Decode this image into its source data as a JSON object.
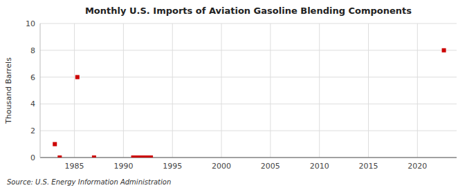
{
  "chart_data": {
    "type": "scatter",
    "title": "Monthly U.S. Imports of Aviation Gasoline Blending Components",
    "y_label": "Thousand Barrels",
    "source": "Source: U.S. Energy Information Administration",
    "x": [
      1983.0,
      1983.5,
      1985.3,
      1987.0,
      1991.0,
      1991.2,
      1991.4,
      1991.6,
      1991.8,
      1992.0,
      1992.2,
      1992.4,
      1992.6,
      1992.8,
      2022.7
    ],
    "values": [
      1.0,
      0.0,
      6.0,
      0.0,
      0.0,
      0.0,
      0.0,
      0.0,
      0.0,
      0.0,
      0.0,
      0.0,
      0.0,
      0.0,
      8.0
    ],
    "color": "#cc0000",
    "marker": "square",
    "xlim": [
      1981.5,
      2024
    ],
    "ylim": [
      0,
      10
    ],
    "xticks": [
      1985,
      1990,
      1995,
      2000,
      2005,
      2010,
      2015,
      2020
    ],
    "yticks": [
      0,
      2,
      4,
      6,
      8,
      10
    ],
    "grid": true
  }
}
